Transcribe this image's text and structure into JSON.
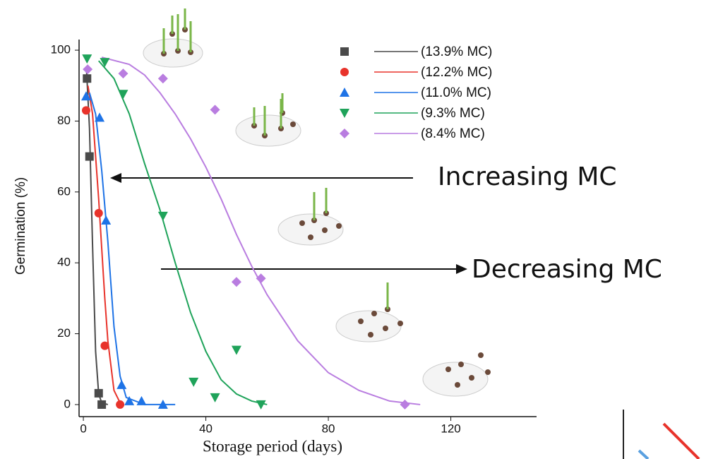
{
  "chart_data": {
    "type": "scatter",
    "x_label": "Storage period (days)",
    "y_label": "Germination (%)",
    "xlim": [
      -1.4,
      148
    ],
    "ylim": [
      -3.4,
      103
    ],
    "xticks": [
      0,
      40,
      80,
      120
    ],
    "yticks": [
      0,
      20,
      40,
      60,
      80,
      100
    ],
    "series": [
      {
        "name": "(13.9% MC)",
        "color": "#4a4a4a",
        "marker": "square",
        "x": [
          1.2,
          2,
          5,
          6
        ],
        "values": [
          92,
          70,
          3.2,
          0
        ],
        "fit": {
          "x": [
            1,
            2,
            3,
            4,
            5,
            6,
            8
          ],
          "values": [
            95,
            78,
            45,
            15,
            3,
            0.5,
            0
          ]
        }
      },
      {
        "name": "(12.2% MC)",
        "color": "#e8332b",
        "marker": "circle",
        "x": [
          0.9,
          5,
          7,
          12
        ],
        "values": [
          83,
          54,
          16.6,
          0
        ],
        "fit": {
          "x": [
            1.5,
            3,
            4,
            5,
            6,
            7,
            8,
            10,
            12
          ],
          "values": [
            90,
            82,
            70,
            58,
            44,
            30,
            18,
            4,
            0.5
          ]
        }
      },
      {
        "name": "(11.0% MC)",
        "color": "#1e73e6",
        "marker": "triangle-up",
        "x": [
          0.9,
          5.3,
          7.4,
          12.5,
          15,
          19,
          26
        ],
        "values": [
          87,
          81,
          52,
          5.6,
          1,
          1,
          0
        ],
        "fit": {
          "x": [
            2,
            4,
            6,
            7,
            8,
            9,
            10,
            12,
            14,
            20,
            30
          ],
          "values": [
            88,
            82,
            66,
            56,
            46,
            34,
            22,
            8,
            2,
            0,
            0
          ]
        }
      },
      {
        "name": "(9.3% MC)",
        "color": "#1fa35a",
        "marker": "triangle-down",
        "x": [
          1.2,
          7,
          13,
          26,
          36,
          43,
          50,
          58
        ],
        "values": [
          97.6,
          96.6,
          87.6,
          53.2,
          6.4,
          2,
          15.4,
          0
        ],
        "fit": {
          "x": [
            5,
            10,
            15,
            20,
            25,
            30,
            35,
            40,
            45,
            50,
            55,
            60
          ],
          "values": [
            97,
            92,
            82,
            68,
            55,
            40,
            26,
            15,
            7,
            3,
            1,
            0
          ]
        }
      },
      {
        "name": "(8.4% MC)",
        "color": "#b97de0",
        "marker": "diamond",
        "x": [
          1.4,
          13,
          26,
          43,
          50,
          58,
          105
        ],
        "values": [
          94.6,
          93.4,
          92,
          83.2,
          34.6,
          35.6,
          0
        ],
        "fit": {
          "x": [
            6,
            15,
            20,
            25,
            30,
            35,
            40,
            45,
            50,
            55,
            60,
            70,
            80,
            90,
            100,
            110
          ],
          "values": [
            98,
            96,
            93,
            88,
            82,
            75,
            67,
            58,
            48,
            39,
            31,
            18,
            9,
            4,
            1,
            0
          ]
        }
      }
    ],
    "annotations": [
      {
        "text": "Increasing MC"
      },
      {
        "text": "Decreasing MC"
      }
    ]
  }
}
